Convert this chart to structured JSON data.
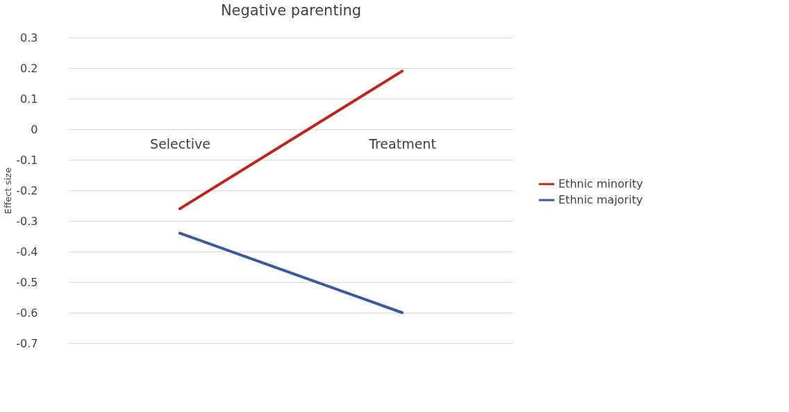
{
  "chart_data": {
    "type": "line",
    "title": "Negative parenting",
    "ylabel": "Effect size",
    "categories": [
      "Selective",
      "Treatment"
    ],
    "series": [
      {
        "name": "Ethnic minority",
        "color": "#c0231c",
        "values": [
          -0.26,
          0.19
        ]
      },
      {
        "name": "Ethnic majority",
        "color": "#3a5a9c",
        "values": [
          -0.34,
          -0.6
        ]
      }
    ],
    "ylim": [
      -0.7,
      0.3
    ],
    "yticks": [
      -0.7,
      -0.6,
      -0.5,
      -0.4,
      -0.3,
      -0.2,
      -0.1,
      0,
      0.1,
      0.2,
      0.3
    ],
    "grid": "y",
    "legend": "right",
    "marker": "none",
    "line_style": "solid"
  }
}
